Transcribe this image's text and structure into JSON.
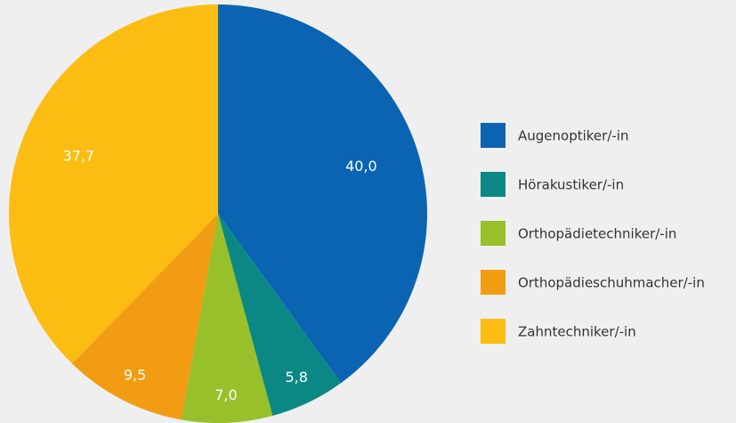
{
  "chart_data": {
    "type": "pie",
    "categories": [
      "Augenoptiker/-in",
      "Hörakustiker/-in",
      "Orthopädietechniker/-in",
      "Orthopädieschuhmacher/-in",
      "Zahntechniker/-in"
    ],
    "values": [
      40.0,
      5.8,
      7.0,
      9.5,
      37.7
    ],
    "value_labels": [
      "40,0",
      "5,8",
      "7,0",
      "9,5",
      "37,7"
    ],
    "colors": [
      "#0a64b2",
      "#0b8884",
      "#97c02a",
      "#f29c13",
      "#fbbd12"
    ],
    "legend": "right"
  }
}
